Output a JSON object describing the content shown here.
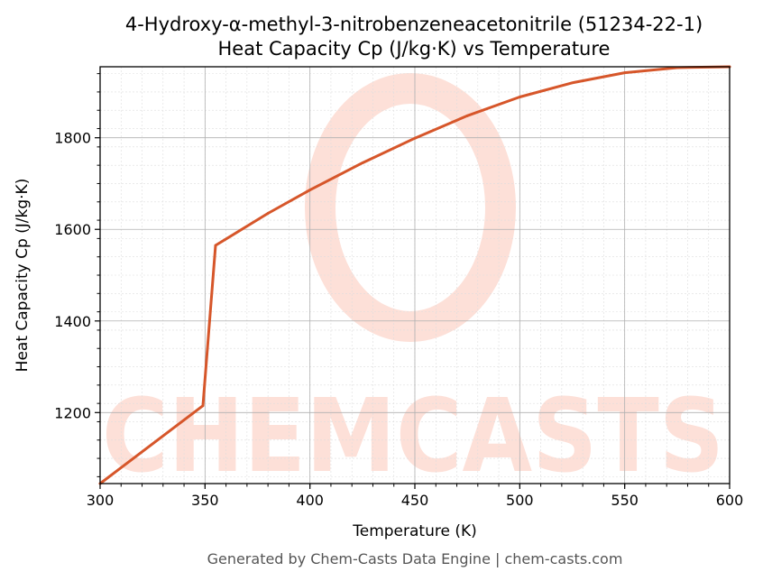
{
  "colors": {
    "series": "#d6562a",
    "watermark": "#fde0d8",
    "grid_major": "#b0b0b0",
    "grid_minor": "#dddddd"
  },
  "watermark": {
    "text": "CHEMCASTS"
  },
  "footer": {
    "text": "Generated by Chem-Casts Data Engine | chem-casts.com"
  },
  "chart_data": {
    "type": "line",
    "title": "4-Hydroxy-α-methyl-3-nitrobenzeneacetonitrile (51234-22-1)",
    "subtitle": "Heat Capacity Cp (J/kg·K) vs Temperature",
    "xlabel": "Temperature (K)",
    "ylabel": "Heat Capacity Cp (J/kg·K)",
    "xlim": [
      300,
      600
    ],
    "ylim": [
      1045,
      1955
    ],
    "xticks": [
      300,
      350,
      400,
      450,
      500,
      550,
      600
    ],
    "yticks": [
      1200,
      1400,
      1600,
      1800
    ],
    "grid": true,
    "series": [
      {
        "x": [
          300,
          349,
          355,
          380,
          400,
          425,
          450,
          475,
          500,
          525,
          550,
          575,
          600
        ],
        "y": [
          1045,
          1215,
          1565,
          1635,
          1686,
          1745,
          1799,
          1848,
          1889,
          1920,
          1942,
          1953,
          1955
        ]
      }
    ]
  }
}
